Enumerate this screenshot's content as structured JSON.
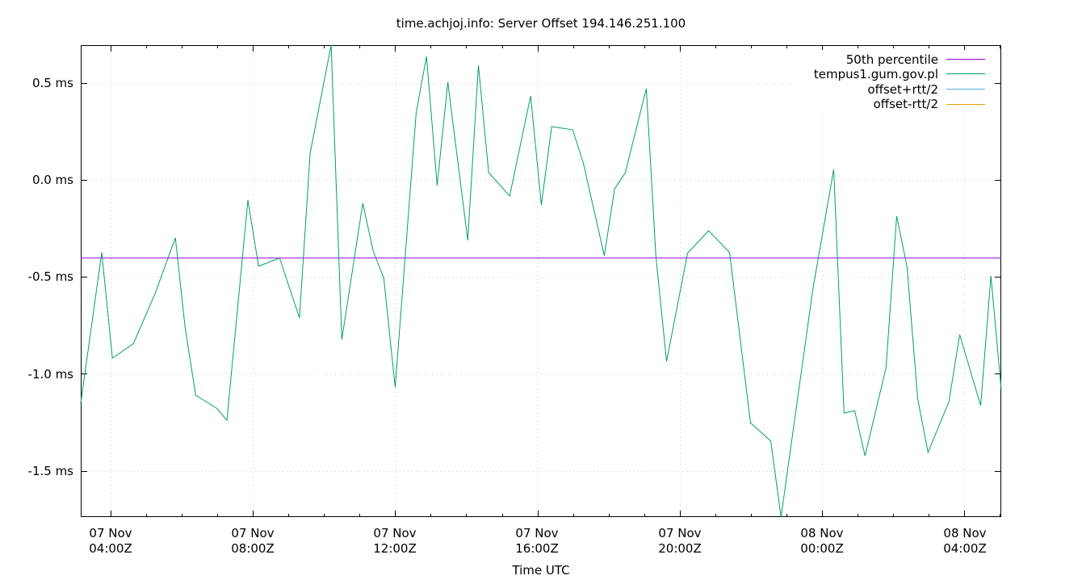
{
  "chart_data": {
    "type": "line",
    "title": "time.achjoj.info: Server Offset 194.146.251.100",
    "xlabel": "Time UTC",
    "ylabel": "",
    "y_unit": "ms",
    "ylim": [
      -1.738,
      0.694
    ],
    "yticks": [
      {
        "value": 0.5,
        "label": "0.5 ms"
      },
      {
        "value": 0.0,
        "label": "0.0 ms"
      },
      {
        "value": -0.5,
        "label": "-0.5 ms"
      },
      {
        "value": -1.0,
        "label": "-1.0 ms"
      },
      {
        "value": -1.5,
        "label": "-1.5 ms"
      }
    ],
    "xlim_hours_from_07nov_0000Z": [
      3.16,
      29.04
    ],
    "xticks": [
      {
        "hour": 4,
        "line1": "07 Nov",
        "line2": "04:00Z"
      },
      {
        "hour": 8,
        "line1": "07 Nov",
        "line2": "08:00Z"
      },
      {
        "hour": 12,
        "line1": "07 Nov",
        "line2": "12:00Z"
      },
      {
        "hour": 16,
        "line1": "07 Nov",
        "line2": "16:00Z"
      },
      {
        "hour": 20,
        "line1": "07 Nov",
        "line2": "20:00Z"
      },
      {
        "hour": 24,
        "line1": "08 Nov",
        "line2": "00:00Z"
      },
      {
        "hour": 28,
        "line1": "08 Nov",
        "line2": "04:00Z"
      }
    ],
    "minor_tick_interval_hours": 1,
    "grid": true,
    "legend_position": "top-right",
    "series": [
      {
        "name": "50th percentile",
        "color": "#9400d3",
        "constant": -0.403
      },
      {
        "name": "tempus1.gum.gov.pl",
        "color": "#009e73",
        "x_hours": [
          3.16,
          3.75,
          4.05,
          4.64,
          5.25,
          5.82,
          6.09,
          6.39,
          6.98,
          7.27,
          7.86,
          8.16,
          8.75,
          9.31,
          9.61,
          10.2,
          10.5,
          11.09,
          11.38,
          11.68,
          12.0,
          12.59,
          12.88,
          13.18,
          13.48,
          14.04,
          14.34,
          14.63,
          15.22,
          15.81,
          16.11,
          16.4,
          16.99,
          17.29,
          17.88,
          18.17,
          18.47,
          19.06,
          19.33,
          19.63,
          20.22,
          20.81,
          21.4,
          21.99,
          22.56,
          22.85,
          23.74,
          24.33,
          24.62,
          24.92,
          25.21,
          25.8,
          26.1,
          26.39,
          26.69,
          26.98,
          27.57,
          27.87,
          28.46,
          28.75,
          29.04
        ],
        "values": [
          -1.151,
          -0.374,
          -0.919,
          -0.844,
          -0.586,
          -0.299,
          -0.756,
          -1.11,
          -1.177,
          -1.239,
          -0.104,
          -0.445,
          -0.403,
          -0.711,
          0.137,
          0.694,
          -0.823,
          -0.121,
          -0.366,
          -0.507,
          -1.069,
          0.345,
          0.636,
          -0.029,
          0.503,
          -0.312,
          0.59,
          0.037,
          -0.083,
          0.432,
          -0.129,
          0.274,
          0.258,
          0.087,
          -0.391,
          -0.046,
          0.037,
          0.47,
          -0.395,
          -0.936,
          -0.378,
          -0.262,
          -0.374,
          -1.252,
          -1.347,
          -1.738,
          -0.569,
          0.054,
          -1.202,
          -1.19,
          -1.422,
          -0.969,
          -0.187,
          -0.449,
          -1.127,
          -1.405,
          -1.143,
          -0.798,
          -1.164,
          -0.495,
          -1.081
        ]
      },
      {
        "name": "offset+rtt/2",
        "color": "#56b4e9",
        "values": []
      },
      {
        "name": "offset-rtt/2",
        "color": "#e69f00",
        "values": []
      }
    ]
  },
  "title": "time.achjoj.info: Server Offset 194.146.251.100",
  "xlabel": "Time UTC",
  "legend": [
    {
      "label": "50th percentile",
      "color": "#9400d3"
    },
    {
      "label": "tempus1.gum.gov.pl",
      "color": "#009e73"
    },
    {
      "label": "offset+rtt/2",
      "color": "#56b4e9"
    },
    {
      "label": "offset-rtt/2",
      "color": "#e69f00"
    }
  ],
  "yticks": [
    "0.5 ms",
    "0.0 ms",
    "-0.5 ms",
    "-1.0 ms",
    "-1.5 ms"
  ],
  "xticks": [
    {
      "line1": "07 Nov",
      "line2": "04:00Z"
    },
    {
      "line1": "07 Nov",
      "line2": "08:00Z"
    },
    {
      "line1": "07 Nov",
      "line2": "12:00Z"
    },
    {
      "line1": "07 Nov",
      "line2": "16:00Z"
    },
    {
      "line1": "07 Nov",
      "line2": "20:00Z"
    },
    {
      "line1": "08 Nov",
      "line2": "00:00Z"
    },
    {
      "line1": "08 Nov",
      "line2": "04:00Z"
    }
  ]
}
